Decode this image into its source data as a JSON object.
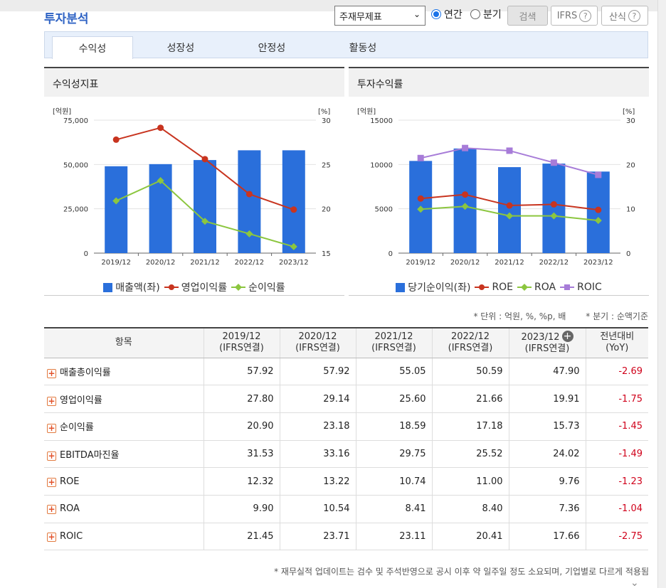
{
  "header": {
    "title": "투자분석",
    "report_select": "주재무제표",
    "radio_annual": "연간",
    "radio_quarter": "분기",
    "search_label": "검색",
    "ifrs_label": "IFRS",
    "formula_label": "산식",
    "help_glyph": "?"
  },
  "tabs": [
    "수익성",
    "성장성",
    "안정성",
    "활동성"
  ],
  "colors": {
    "bar": "#2a6fdb",
    "red": "#c8341f",
    "green": "#8cc63f",
    "purple": "#a77cd8"
  },
  "chart_data": [
    {
      "type": "bar",
      "title": "수익성지표",
      "left_unit": "[억원]",
      "right_unit": "[%]",
      "categories": [
        "2019/12",
        "2020/12",
        "2021/12",
        "2022/12",
        "2023/12"
      ],
      "left_ticks": [
        "75,000",
        "50,000",
        "25,000",
        "0"
      ],
      "right_ticks": [
        "30",
        "25",
        "20",
        "15"
      ],
      "ylim_left": [
        0,
        75000
      ],
      "ylim_right": [
        15,
        30
      ],
      "series": [
        {
          "name": "매출액(좌)",
          "kind": "bar",
          "values": [
            49000,
            50200,
            52500,
            58000,
            58000
          ]
        },
        {
          "name": "영업이익률",
          "kind": "line",
          "values": [
            27.8,
            29.14,
            25.6,
            21.66,
            19.91
          ]
        },
        {
          "name": "순이익률",
          "kind": "line",
          "values": [
            20.9,
            23.18,
            18.59,
            17.18,
            15.73
          ]
        }
      ]
    },
    {
      "type": "bar",
      "title": "투자수익률",
      "left_unit": "[억원]",
      "right_unit": "[%]",
      "categories": [
        "2019/12",
        "2020/12",
        "2021/12",
        "2022/12",
        "2023/12"
      ],
      "left_ticks": [
        "15000",
        "10000",
        "5000",
        "0"
      ],
      "right_ticks": [
        "30",
        "20",
        "10",
        "0"
      ],
      "ylim_left": [
        0,
        15000
      ],
      "ylim_right": [
        0,
        30
      ],
      "series": [
        {
          "name": "당기순이익(좌)",
          "kind": "bar",
          "values": [
            10400,
            11800,
            9700,
            10100,
            9200
          ]
        },
        {
          "name": "ROE",
          "kind": "line",
          "values": [
            12.32,
            13.22,
            10.74,
            11.0,
            9.76
          ]
        },
        {
          "name": "ROA",
          "kind": "line",
          "values": [
            9.9,
            10.54,
            8.41,
            8.4,
            7.36
          ]
        },
        {
          "name": "ROIC",
          "kind": "line",
          "values": [
            21.45,
            23.71,
            23.11,
            20.41,
            17.66
          ]
        }
      ]
    }
  ],
  "unit_note": {
    "unit": "* 단위 : 억원, %, %p, 배",
    "quarter": "* 분기 : 순액기준"
  },
  "table": {
    "headers": [
      "항목",
      "2019/12",
      "2020/12",
      "2021/12",
      "2022/12",
      "2023/12",
      "전년대비"
    ],
    "subheaders": [
      "",
      "(IFRS연결)",
      "(IFRS연결)",
      "(IFRS연결)",
      "(IFRS연결)",
      "(IFRS연결)",
      "(YoY)"
    ],
    "rows": [
      [
        "매출총이익률",
        "57.92",
        "57.92",
        "55.05",
        "50.59",
        "47.90",
        "-2.69"
      ],
      [
        "영업이익률",
        "27.80",
        "29.14",
        "25.60",
        "21.66",
        "19.91",
        "-1.75"
      ],
      [
        "순이익률",
        "20.90",
        "23.18",
        "18.59",
        "17.18",
        "15.73",
        "-1.45"
      ],
      [
        "EBITDA마진율",
        "31.53",
        "33.16",
        "29.75",
        "25.52",
        "24.02",
        "-1.49"
      ],
      [
        "ROE",
        "12.32",
        "13.22",
        "10.74",
        "11.00",
        "9.76",
        "-1.23"
      ],
      [
        "ROA",
        "9.90",
        "10.54",
        "8.41",
        "8.40",
        "7.36",
        "-1.04"
      ],
      [
        "ROIC",
        "21.45",
        "23.71",
        "23.11",
        "20.41",
        "17.66",
        "-2.75"
      ]
    ]
  },
  "footnote": "* 재무실적 업데이트는 검수 및 주석반영으로 공시 이후 약 일주일 정도 소요되며, 기업별로 다르게 적용됨"
}
